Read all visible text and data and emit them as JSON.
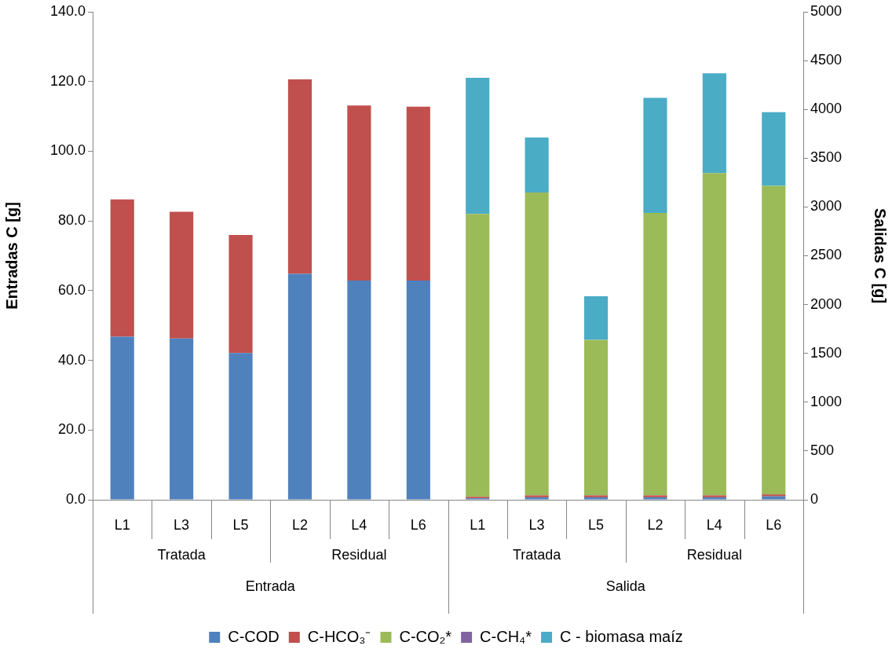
{
  "chart_data": {
    "type": "bar",
    "stacked": true,
    "categories": [
      "L1",
      "L3",
      "L5",
      "L2",
      "L4",
      "L6",
      "L1",
      "L3",
      "L5",
      "L2",
      "L4",
      "L6"
    ],
    "series": [
      {
        "name": "C-COD",
        "color": "#4f81bd",
        "values": [
          46.8,
          46.3,
          42.1,
          64.8,
          62.9,
          62.9,
          null,
          null,
          null,
          null,
          null,
          null
        ]
      },
      {
        "name": "C-HCO₃⁻",
        "color": "#c0504d",
        "values": [
          39.4,
          36.3,
          33.9,
          55.8,
          50.2,
          49.9,
          null,
          null,
          null,
          null,
          null,
          null
        ]
      },
      {
        "color": "#4f81bd",
        "axis": "y2",
        "values": [
          null,
          null,
          null,
          null,
          null,
          null,
          15,
          25,
          25,
          25,
          25,
          35
        ]
      },
      {
        "color": "#c0504d",
        "axis": "y2",
        "values": [
          null,
          null,
          null,
          null,
          null,
          null,
          15,
          20,
          20,
          20,
          20,
          20
        ]
      },
      {
        "name": "C-CO₂*",
        "color": "#9bbb59",
        "axis": "y2",
        "values": [
          null,
          null,
          null,
          null,
          null,
          null,
          2899,
          3103,
          1594,
          2894,
          3302,
          3162
        ]
      },
      {
        "name": "C-CH₄*",
        "color": "#8064a2",
        "axis": "y2",
        "values": [
          null,
          null,
          null,
          null,
          null,
          null,
          null,
          null,
          null,
          null,
          null,
          null
        ]
      },
      {
        "name": "C - biomasa maíz",
        "color": "#4bacc6",
        "axis": "y2",
        "values": [
          null,
          null,
          null,
          null,
          null,
          null,
          1395,
          563,
          446,
          1180,
          1022,
          754
        ]
      }
    ],
    "ylabel": "Entradas C [g]",
    "y2label": "Salidas C [g]",
    "ylim": [
      0,
      140
    ],
    "yticks": [
      {
        "value": 0,
        "label": "0.0"
      },
      {
        "value": 20,
        "label": "20.0"
      },
      {
        "value": 40,
        "label": "40.0"
      },
      {
        "value": 60,
        "label": "60.0"
      },
      {
        "value": 80,
        "label": "80.0"
      },
      {
        "value": 100,
        "label": "100.0"
      },
      {
        "value": 120,
        "label": "120.0"
      },
      {
        "value": 140,
        "label": "140.0"
      }
    ],
    "y2lim": [
      0,
      5000
    ],
    "y2ticks": [
      0,
      500,
      1000,
      1500,
      2000,
      2500,
      3000,
      3500,
      4000,
      4500,
      5000
    ],
    "annotations": [
      "Tratada",
      "Residual",
      "Tratada",
      "Residual",
      "Entrada",
      "Salida"
    ],
    "legend": "bottom"
  }
}
